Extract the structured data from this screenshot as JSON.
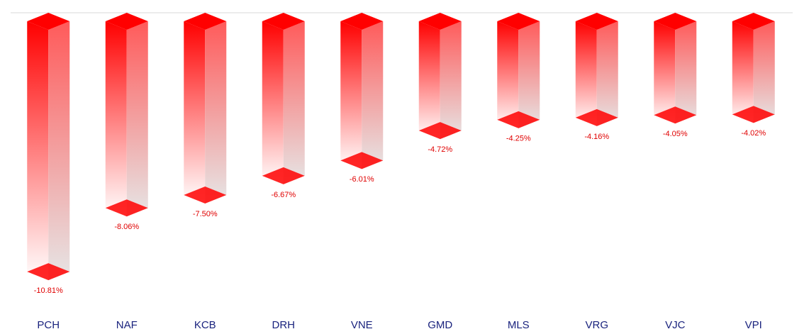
{
  "chart_data": {
    "type": "bar3d",
    "categories": [
      "PCH",
      "NAF",
      "KCB",
      "DRH",
      "VNE",
      "GMD",
      "MLS",
      "VRG",
      "VJC",
      "VPI"
    ],
    "values": [
      -10.81,
      -8.06,
      -7.5,
      -6.67,
      -6.01,
      -4.72,
      -4.25,
      -4.16,
      -4.05,
      -4.02
    ],
    "value_labels": [
      "-10.81%",
      "-8.06%",
      "-7.50%",
      "-6.67%",
      "-6.01%",
      "-4.72%",
      "-4.25%",
      "-4.16%",
      "-4.05%",
      "-4.02%"
    ],
    "color": "#ff0000",
    "ylim": [
      -12,
      0
    ]
  }
}
